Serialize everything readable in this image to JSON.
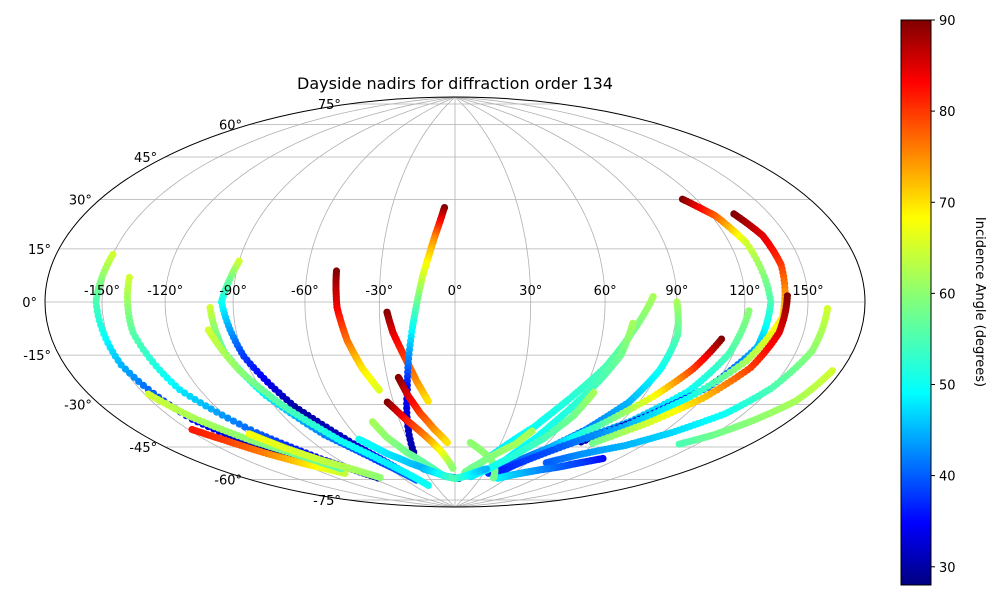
{
  "chart_data": {
    "type": "scatter",
    "projection": "hammer",
    "title": "Dayside nadirs for diffraction order 134",
    "xlabel": "",
    "ylabel": "",
    "lon_ticks": [
      -150,
      -120,
      -90,
      -60,
      -30,
      0,
      30,
      60,
      90,
      120,
      150
    ],
    "lon_tick_labels": [
      "-150°",
      "-120°",
      "-90°",
      "-60°",
      "-30°",
      "0°",
      "30°",
      "60°",
      "90°",
      "120°",
      "150°"
    ],
    "lat_ticks": [
      -75,
      -60,
      -45,
      -30,
      -15,
      0,
      15,
      30,
      45,
      60,
      75
    ],
    "lat_tick_labels": [
      "-75°",
      "-60°",
      "-45°",
      "-30°",
      "-15°",
      "0°",
      "15°",
      "30°",
      "45°",
      "60°",
      "75°"
    ],
    "grid": true,
    "colorbar": {
      "label": "Incidence Angle (degrees)",
      "colormap": "jet",
      "range": [
        28,
        90
      ],
      "ticks": [
        30,
        40,
        50,
        60,
        70,
        80,
        90
      ],
      "tick_labels": [
        "30",
        "40",
        "50",
        "60",
        "70",
        "80",
        "90"
      ]
    },
    "series": [
      {
        "lon": [
          -150,
          -153,
          -150,
          -140,
          -125,
          -110
        ],
        "lat": [
          15,
          0,
          -20,
          -40,
          -55,
          -65
        ],
        "inc": [
          65,
          55,
          45,
          35,
          30,
          35
        ]
      },
      {
        "lon": [
          -138,
          -137,
          -130,
          -115,
          -100,
          -85
        ],
        "lat": [
          8,
          -10,
          -30,
          -48,
          -62,
          -72
        ],
        "inc": [
          65,
          56,
          48,
          40,
          34,
          30
        ]
      },
      {
        "lon": [
          -90,
          -95,
          -90,
          -80,
          -65,
          -50
        ],
        "lat": [
          15,
          0,
          -20,
          -40,
          -58,
          -72
        ],
        "inc": [
          65,
          50,
          38,
          30,
          32,
          40
        ]
      },
      {
        "lon": [
          -100,
          -98,
          -90,
          -78,
          -62,
          -48
        ],
        "lat": [
          -2,
          -18,
          -35,
          -52,
          -65,
          -75
        ],
        "inc": [
          65,
          55,
          48,
          42,
          38,
          40
        ]
      },
      {
        "lon": [
          -102,
          -95,
          -85,
          -72,
          -55,
          -40
        ],
        "lat": [
          -10,
          -25,
          -40,
          -55,
          -68,
          -78
        ],
        "inc": [
          65,
          60,
          55,
          50,
          48,
          50
        ]
      },
      {
        "lon": [
          -48,
          -47,
          -44,
          -40,
          -35
        ],
        "lat": [
          12,
          -2,
          -15,
          -26,
          -35
        ],
        "inc": [
          90,
          84,
          77,
          70,
          66
        ]
      },
      {
        "lon": [
          -27,
          -25,
          -21,
          -17,
          -13
        ],
        "lat": [
          -4,
          -12,
          -22,
          -32,
          -40
        ],
        "inc": [
          90,
          85,
          80,
          75,
          70
        ]
      },
      {
        "lon": [
          -5,
          -9,
          -13,
          -17,
          -22,
          -30
        ],
        "lat": [
          38,
          25,
          10,
          -10,
          -35,
          -62
        ],
        "inc": [
          90,
          75,
          65,
          50,
          35,
          30
        ]
      },
      {
        "lon": [
          -25,
          -22,
          -18,
          -12,
          -5
        ],
        "lat": [
          -30,
          -38,
          -45,
          -52,
          -58
        ],
        "inc": [
          90,
          85,
          80,
          75,
          70
        ]
      },
      {
        "lon": [
          -33,
          -26,
          -18,
          -10,
          -2
        ],
        "lat": [
          -40,
          -48,
          -55,
          -62,
          -70
        ],
        "inc": [
          90,
          82,
          76,
          68,
          60
        ]
      },
      {
        "lon": [
          -148,
          -140,
          -130,
          -118,
          -105
        ],
        "lat": [
          -43,
          -48,
          -55,
          -62,
          -68
        ],
        "inc": [
          82,
          80,
          76,
          70,
          64
        ]
      },
      {
        "lon": [
          -148,
          -138,
          -125,
          -112,
          -100
        ],
        "lat": [
          -30,
          -40,
          -50,
          -58,
          -66
        ],
        "inc": [
          65,
          62,
          60,
          58,
          56
        ]
      },
      {
        "lon": [
          80,
          72,
          65,
          55,
          45,
          30,
          15
        ],
        "lat": [
          2,
          -12,
          -25,
          -38,
          -50,
          -62,
          -72
        ],
        "inc": [
          62,
          58,
          55,
          52,
          50,
          48,
          46
        ]
      },
      {
        "lon": [
          90,
          92,
          90,
          85,
          75,
          60,
          45
        ],
        "lat": [
          0,
          -12,
          -25,
          -38,
          -50,
          -62,
          -72
        ],
        "inc": [
          62,
          56,
          50,
          45,
          42,
          40,
          38
        ]
      },
      {
        "lon": [
          72,
          70,
          65,
          58,
          50,
          40
        ],
        "lat": [
          -8,
          -20,
          -30,
          -42,
          -55,
          -66
        ],
        "inc": [
          62,
          58,
          55,
          52,
          50,
          48
        ]
      },
      {
        "lon": [
          112,
          105,
          95,
          80,
          65,
          50,
          35
        ],
        "lat": [
          -13,
          -24,
          -35,
          -48,
          -58,
          -66,
          -72
        ],
        "inc": [
          90,
          80,
          68,
          55,
          45,
          40,
          38
        ]
      },
      {
        "lon": [
          122,
          118,
          110,
          95,
          75,
          55,
          40
        ],
        "lat": [
          -3,
          -18,
          -32,
          -45,
          -56,
          -66,
          -72
        ],
        "inc": [
          60,
          55,
          50,
          45,
          40,
          38,
          36
        ]
      },
      {
        "lon": [
          113,
          122,
          128,
          132,
          130,
          118,
          100,
          80
        ],
        "lat": [
          37,
          30,
          20,
          0,
          -15,
          -30,
          -43,
          -55
        ],
        "inc": [
          90,
          78,
          65,
          55,
          45,
          38,
          32,
          30
        ]
      },
      {
        "lon": [
          132,
          138,
          140,
          138,
          128,
          112,
          95,
          70
        ],
        "lat": [
          30,
          22,
          12,
          -5,
          -20,
          -35,
          -47,
          -58
        ],
        "inc": [
          90,
          85,
          80,
          70,
          62,
          50,
          45,
          40
        ]
      },
      {
        "lon": [
          140,
          138,
          132,
          120,
          105,
          88
        ],
        "lat": [
          2,
          -10,
          -22,
          -34,
          -45,
          -55
        ],
        "inc": [
          90,
          85,
          80,
          72,
          65,
          58
        ]
      },
      {
        "lon": [
          160,
          158,
          150,
          140,
          125,
          110,
          90,
          75
        ],
        "lat": [
          -2,
          -15,
          -28,
          -38,
          -47,
          -54,
          -60,
          -65
        ],
        "inc": [
          65,
          60,
          55,
          50,
          47,
          45,
          43,
          40
        ]
      },
      {
        "lon": [
          175,
          170,
          160,
          150,
          140
        ],
        "lat": [
          -20,
          -30,
          -38,
          -45,
          -50
        ],
        "inc": [
          65,
          62,
          60,
          58,
          55
        ]
      },
      {
        "lon": [
          110,
          100,
          90,
          80,
          70,
          60,
          50
        ],
        "lat": [
          -60,
          -63,
          -66,
          -68,
          -70,
          -72,
          -74
        ],
        "inc": [
          35,
          38,
          40,
          42,
          44,
          46,
          48
        ]
      },
      {
        "lon": [
          10,
          20,
          30,
          38,
          45
        ],
        "lat": [
          -58,
          -62,
          -66,
          -70,
          -74
        ],
        "inc": [
          60,
          60,
          60,
          58,
          58
        ]
      },
      {
        "lon": [
          45,
          40,
          30,
          20,
          10
        ],
        "lat": [
          -52,
          -58,
          -63,
          -68,
          -72
        ],
        "inc": [
          62,
          62,
          60,
          58,
          58
        ]
      },
      {
        "lon": [
          65,
          62,
          55,
          45,
          32,
          18
        ],
        "lat": [
          -35,
          -45,
          -55,
          -63,
          -70,
          -74
        ],
        "inc": [
          62,
          58,
          55,
          52,
          50,
          48
        ]
      },
      {
        "lon": [
          -45,
          -42,
          -35,
          -25,
          -15
        ],
        "lat": [
          -48,
          -55,
          -62,
          -68,
          -73
        ],
        "inc": [
          62,
          60,
          58,
          56,
          55
        ]
      },
      {
        "lon": [
          -60,
          -50,
          -38,
          -25,
          -10,
          5
        ],
        "lat": [
          -55,
          -62,
          -67,
          -71,
          -74,
          -75
        ],
        "inc": [
          50,
          48,
          46,
          44,
          42,
          40
        ]
      },
      {
        "lon": [
          -30,
          -20,
          -10,
          0,
          10,
          20,
          30
        ],
        "lat": [
          -70,
          -72,
          -74,
          -75,
          -74,
          -72,
          -70
        ],
        "inc": [
          45,
          48,
          52,
          55,
          52,
          48,
          45
        ]
      },
      {
        "lon": [
          -120,
          -112,
          -102,
          -92,
          -82
        ],
        "lat": [
          -48,
          -55,
          -62,
          -67,
          -72
        ],
        "inc": [
          68,
          66,
          64,
          62,
          60
        ]
      }
    ]
  }
}
